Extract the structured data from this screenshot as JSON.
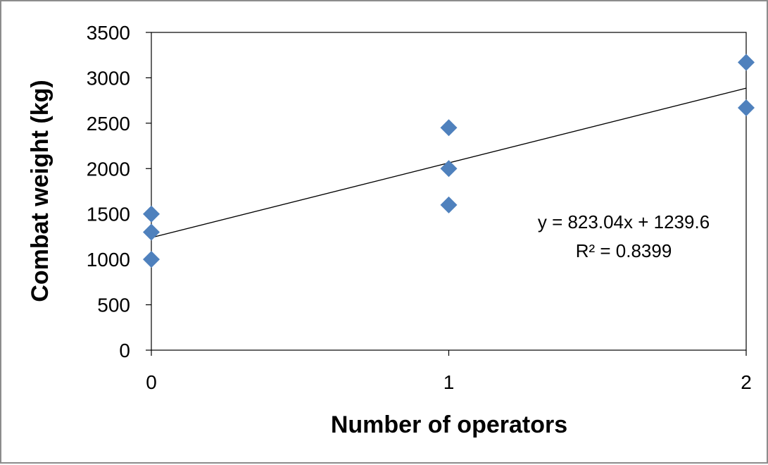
{
  "chart_data": {
    "type": "scatter",
    "xlabel": "Number of operators",
    "ylabel": "Combat weight  (kg)",
    "xlim": [
      0,
      2
    ],
    "ylim": [
      0,
      3500
    ],
    "x_ticks": [
      "0",
      "1",
      "2"
    ],
    "y_ticks": [
      "0",
      "500",
      "1000",
      "1500",
      "2000",
      "2500",
      "3000",
      "3500"
    ],
    "grid": false,
    "marker": "diamond",
    "colors": {
      "marker": "#4f81bd",
      "trendline": "#000000",
      "axis": "#000000",
      "frame": "#8c8c8c"
    },
    "series": [
      {
        "points": [
          {
            "x": 0,
            "y": 1500
          },
          {
            "x": 0,
            "y": 1300
          },
          {
            "x": 0,
            "y": 1000
          },
          {
            "x": 1,
            "y": 2450
          },
          {
            "x": 1,
            "y": 2000
          },
          {
            "x": 1,
            "y": 1600
          },
          {
            "x": 2,
            "y": 3170
          },
          {
            "x": 2,
            "y": 2670
          }
        ]
      }
    ],
    "trendline": {
      "type": "linear",
      "slope": 823.04,
      "intercept": 1239.6,
      "equation": "y = 823.04x + 1239.6",
      "r_squared": "R² = 0.8399"
    }
  }
}
